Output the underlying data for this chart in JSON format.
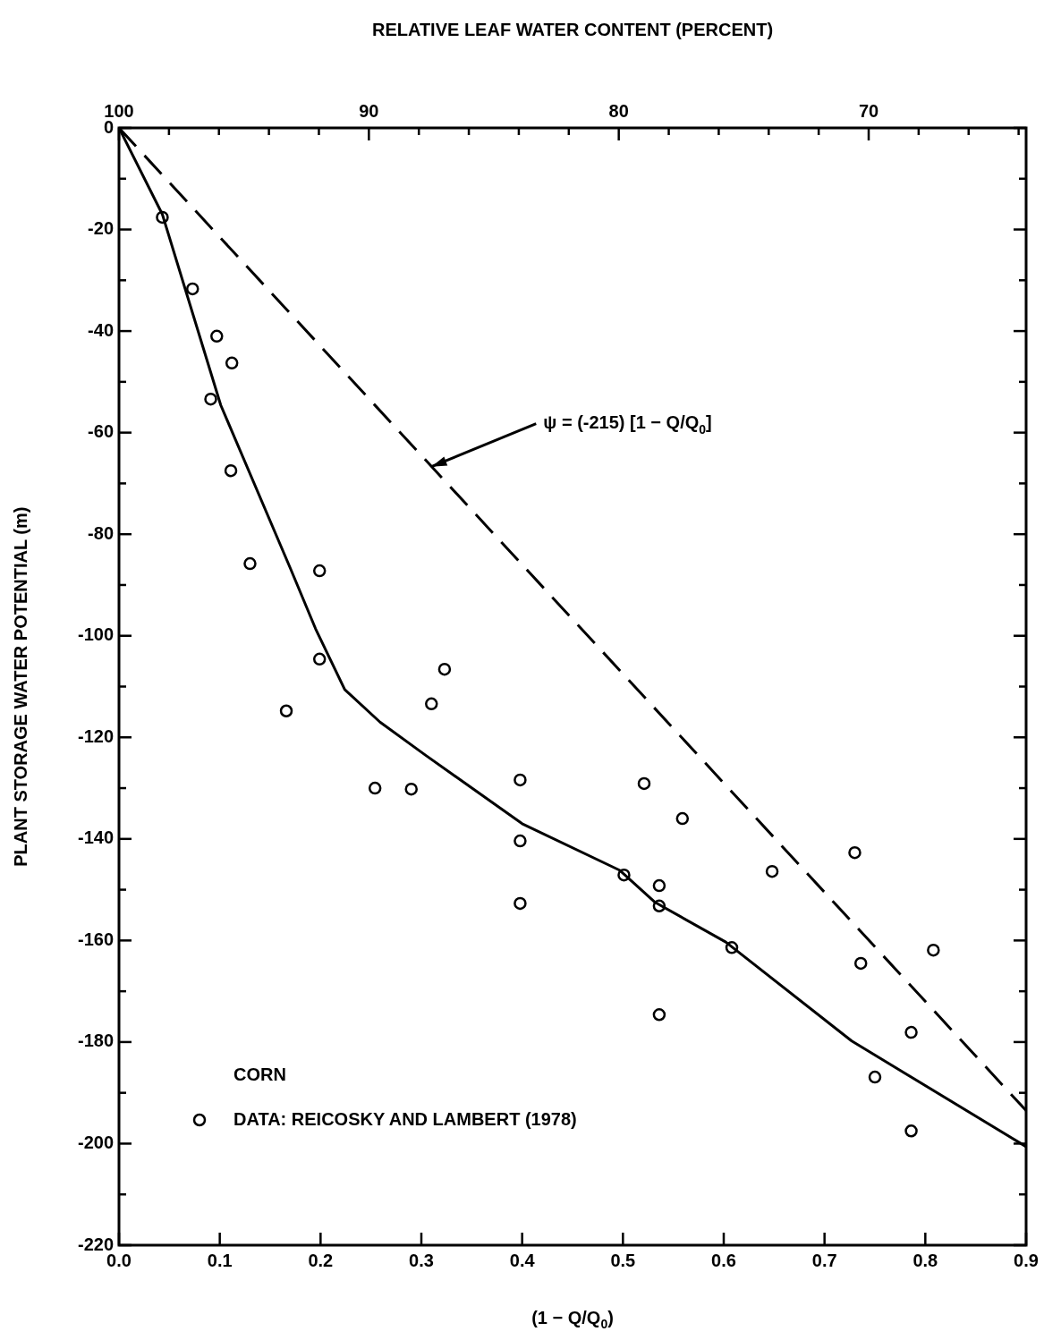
{
  "chart_data": {
    "type": "scatter",
    "xlabel": "(1 − Q/Q$_{0}$)",
    "x2label": "RELATIVE LEAF WATER CONTENT (PERCENT)",
    "ylabel": "PLANT STORAGE WATER POTENTIAL (m)",
    "legend_title": "CORN",
    "legend": "bottom left",
    "grid": false,
    "xlim": [
      0,
      0.9
    ],
    "xticks": [
      {
        "value": 0,
        "label": "0.0"
      },
      0.1,
      0.2,
      0.3,
      0.4,
      0.5,
      0.6,
      0.7,
      0.8,
      0.9
    ],
    "x2lim": [
      100,
      63.7
    ],
    "x2ticks": [
      100,
      {
        "value": 98,
        "label": null
      },
      {
        "value": 96,
        "label": null
      },
      {
        "value": 94,
        "label": null
      },
      {
        "value": 92,
        "label": null
      },
      90,
      {
        "value": 88,
        "label": null
      },
      {
        "value": 86,
        "label": null
      },
      {
        "value": 84,
        "label": null
      },
      {
        "value": 82,
        "label": null
      },
      80,
      {
        "value": 78,
        "label": null
      },
      {
        "value": 76,
        "label": null
      },
      {
        "value": 74,
        "label": null
      },
      {
        "value": 72,
        "label": null
      },
      70,
      {
        "value": 68,
        "label": null
      },
      {
        "value": 66,
        "label": null
      },
      {
        "value": 64,
        "label": null
      }
    ],
    "ylim": [
      -220,
      0
    ],
    "yticks": [
      -220,
      {
        "value": -210,
        "label": null
      },
      -200,
      {
        "value": -190,
        "label": null
      },
      -180,
      {
        "value": -170,
        "label": null
      },
      -160,
      {
        "value": -150,
        "label": null
      },
      -140,
      {
        "value": -130,
        "label": null
      },
      -120,
      {
        "value": -110,
        "label": null
      },
      -100,
      {
        "value": -90,
        "label": null
      },
      -80,
      {
        "value": -70,
        "label": null
      },
      -60,
      {
        "value": -50,
        "label": null
      },
      -40,
      {
        "value": -30,
        "label": null
      },
      -20,
      {
        "value": -10,
        "label": null
      },
      0
    ],
    "annotations": [
      {
        "text": "ψ = (-215) [1 − Q/Q$_{0}$]",
        "x": 0.31,
        "y": -66.7
      }
    ],
    "series": [
      {
        "type": "scatter",
        "name": "DATA: REICOSKY AND LAMBERT (1978)",
        "color": "#000000",
        "marker": "circle",
        "x": [
          0.043,
          0.073,
          0.097,
          0.112,
          0.091,
          0.111,
          0.13,
          0.199,
          0.199,
          0.166,
          0.31,
          0.323,
          0.254,
          0.29,
          0.398,
          0.398,
          0.398,
          0.501,
          0.521,
          0.559,
          0.536,
          0.536,
          0.536,
          0.608,
          0.648,
          0.73,
          0.736,
          0.808,
          0.786,
          0.75,
          0.786
        ],
        "values": [
          -17.6,
          -31.7,
          -41,
          -46.3,
          -53.4,
          -67.5,
          -85.8,
          -87.2,
          -104.6,
          -114.8,
          -113.4,
          -106.6,
          -130,
          -130.2,
          -128.4,
          -140.4,
          -152.7,
          -147.1,
          -129.1,
          -136,
          -149.2,
          -153.2,
          -174.6,
          -161.4,
          -146.4,
          -142.7,
          -164.5,
          -161.9,
          -178.1,
          -186.9,
          -197.5
        ]
      },
      {
        "type": "line",
        "color": "#000000",
        "marker": "none",
        "line_style": "solid",
        "x": [
          0,
          0.043,
          0.101,
          0.17,
          0.195,
          0.224,
          0.259,
          0.304,
          0.4,
          0.497,
          0.532,
          0.602,
          0.727,
          0.9
        ],
        "values": [
          0,
          -17,
          -54.6,
          -86.7,
          -98.6,
          -110.6,
          -117,
          -123.5,
          -137,
          -146.2,
          -152.5,
          -160.3,
          -179.8,
          -200.6
        ]
      },
      {
        "type": "line",
        "color": "#000000",
        "marker": "none",
        "line_style": "dashed",
        "x": [
          0,
          0.9
        ],
        "values": [
          0,
          -193.5
        ]
      }
    ]
  }
}
